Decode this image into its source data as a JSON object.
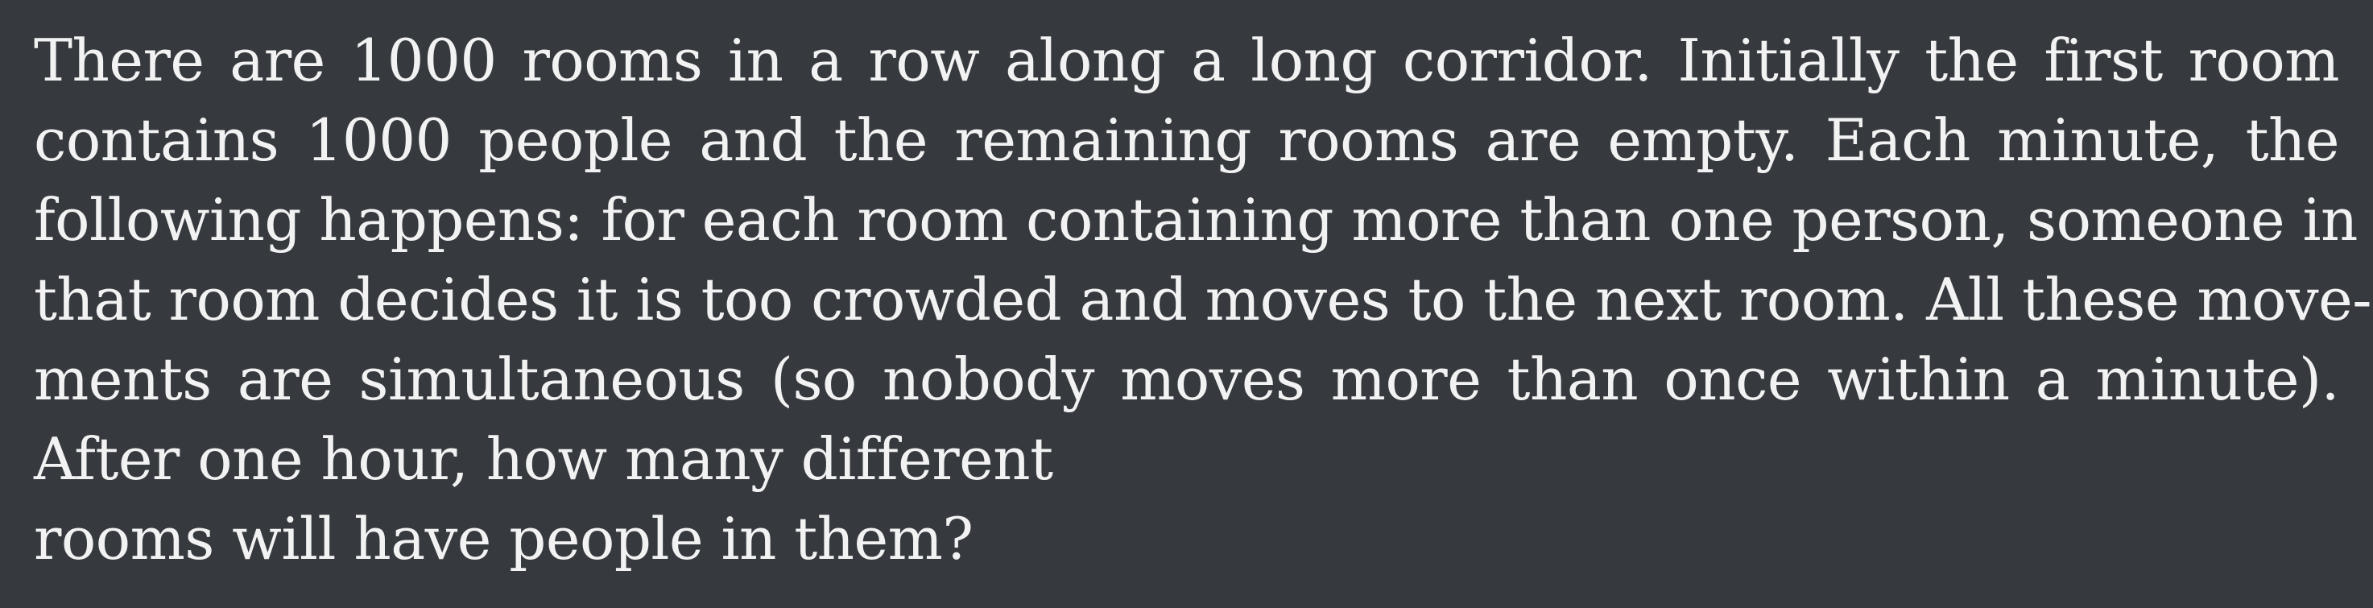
{
  "problem": {
    "lines": [
      "There are 1000 rooms in a row along a long corridor.  Initially the first room",
      "contains 1000 people and the remaining rooms are empty.  Each minute, the",
      "following happens: for each room containing more than one person, someone in",
      "that room decides it is too crowded and moves to the next room.  All these move-",
      "ments are simultaneous (so nobody moves more than once within a minute).",
      "After one hour, how many different",
      "rooms will have people in them?"
    ]
  }
}
